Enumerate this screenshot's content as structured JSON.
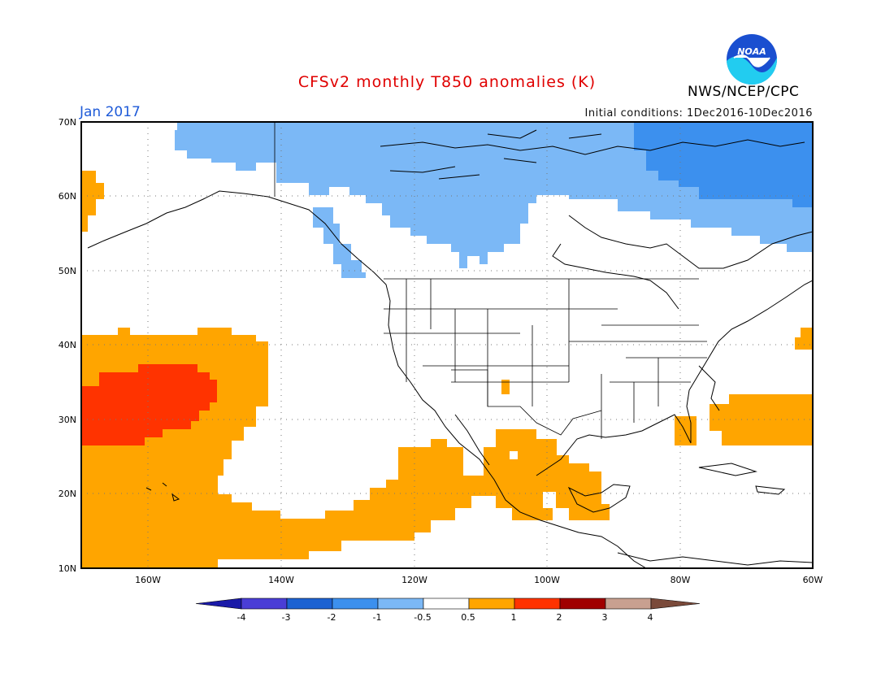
{
  "title": "CFSv2 monthly T850 anomalies (K)",
  "month": "Jan 2017",
  "initial_conditions": "Initial conditions: 1Dec2016-10Dec2016",
  "agency": "NWS/NCEP/CPC",
  "logo_text": "NOAA",
  "colors": {
    "title": "#e00000",
    "month": "#1e5ad8",
    "pos_0_5_1": "#ffa500",
    "pos_1_2": "#ff3300",
    "neg_0_5_1": "#7bb8f6",
    "neg_1_2": "#3c90ee"
  },
  "lat_labels": [
    "70N",
    "60N",
    "50N",
    "40N",
    "30N",
    "20N",
    "10N"
  ],
  "lon_labels": [
    "160W",
    "140W",
    "120W",
    "100W",
    "80W",
    "60W"
  ],
  "colorbar": {
    "labels": [
      "-4",
      "-3",
      "-2",
      "-1",
      "-0.5",
      "0.5",
      "1",
      "2",
      "3",
      "4"
    ],
    "bins": [
      {
        "range": "<-4",
        "color": "#1a1aa8"
      },
      {
        "range": "-4..-3",
        "color": "#4a3ed6"
      },
      {
        "range": "-3..-2",
        "color": "#1c62d2"
      },
      {
        "range": "-2..-1",
        "color": "#3c90ee"
      },
      {
        "range": "-1..-0.5",
        "color": "#7bb8f6"
      },
      {
        "range": "-0.5..0.5",
        "color": "#ffffff"
      },
      {
        "range": "0.5..1",
        "color": "#ffa500"
      },
      {
        "range": "1..2",
        "color": "#ff3300"
      },
      {
        "range": "2..3",
        "color": "#a00000"
      },
      {
        "range": "3..4",
        "color": "#c8a090"
      },
      {
        "range": ">4",
        "color": "#7a4a3a"
      }
    ]
  }
}
